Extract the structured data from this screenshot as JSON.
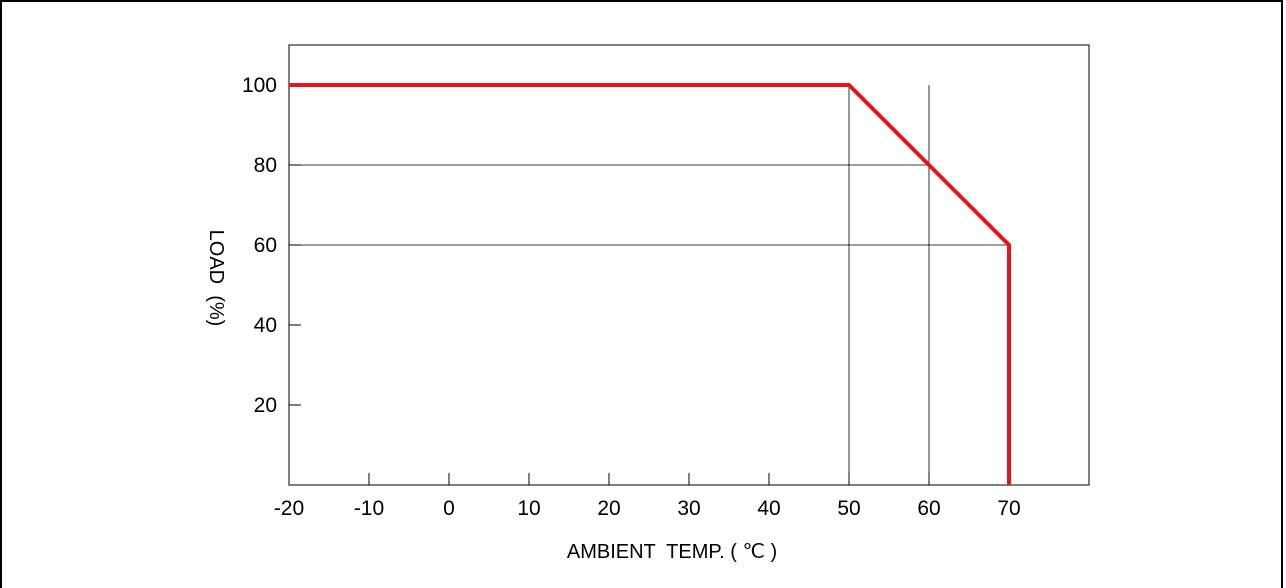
{
  "chart_data": {
    "type": "line",
    "xlabel": "AMBIENT  TEMP. ( ℃ )",
    "ylabel": "LOAD  (%)",
    "xlim": [
      -20,
      80
    ],
    "ylim": [
      0,
      110
    ],
    "x_ticks": [
      -20,
      -10,
      0,
      10,
      20,
      30,
      40,
      50,
      60,
      70
    ],
    "y_ticks": [
      20,
      40,
      60,
      80,
      100
    ],
    "grid_lines": {
      "vertical": [
        50,
        60
      ],
      "horizontal": [
        80,
        60
      ]
    },
    "series": [
      {
        "color": "#e8141c",
        "x": [
          -20,
          50,
          60,
          70,
          70
        ],
        "y": [
          100,
          100,
          80,
          60,
          0
        ]
      }
    ]
  }
}
